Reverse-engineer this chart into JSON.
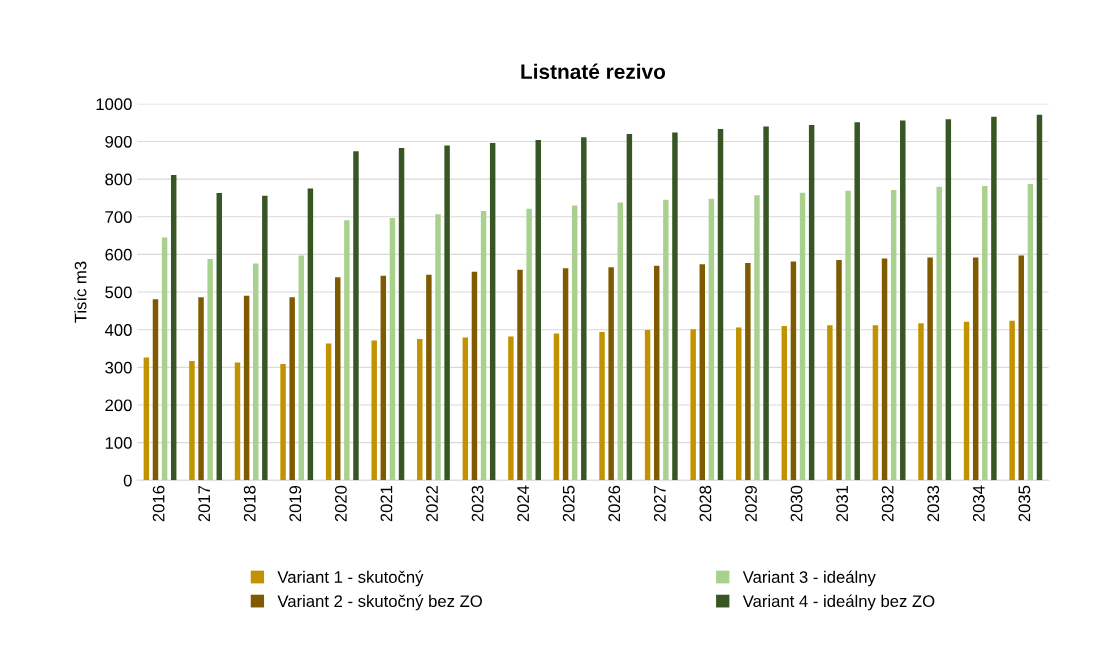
{
  "chart_data": {
    "type": "bar",
    "title": "Listnaté rezivo",
    "ylabel": "Tisíc m3",
    "categories": [
      "2016",
      "2017",
      "2018",
      "2019",
      "2020",
      "2021",
      "2022",
      "2023",
      "2024",
      "2025",
      "2026",
      "2027",
      "2028",
      "2029",
      "2030",
      "2031",
      "2032",
      "2033",
      "2034",
      "2035"
    ],
    "series": [
      {
        "name": "Variant 1 - skutočný",
        "color": "#c39200",
        "values": [
          326,
          317,
          313,
          309,
          363,
          371,
          375,
          379,
          382,
          390,
          394,
          399,
          401,
          406,
          410,
          412,
          412,
          417,
          421,
          424
        ]
      },
      {
        "name": "Variant 2 - skutočný bez ZO",
        "color": "#7f5a00",
        "values": [
          481,
          486,
          490,
          486,
          539,
          543,
          546,
          554,
          559,
          563,
          566,
          570,
          574,
          577,
          581,
          585,
          589,
          592,
          592,
          597
        ]
      },
      {
        "name": "Variant 3 - ideálny",
        "color": "#a9d18e",
        "values": [
          645,
          588,
          576,
          597,
          691,
          697,
          707,
          715,
          721,
          730,
          738,
          745,
          748,
          757,
          764,
          769,
          771,
          780,
          782,
          787
        ]
      },
      {
        "name": "Variant 4 - ideálny bez ZO",
        "color": "#375623",
        "values": [
          811,
          763,
          756,
          775,
          874,
          883,
          889,
          896,
          904,
          911,
          920,
          924,
          933,
          940,
          944,
          951,
          956,
          959,
          966,
          971
        ]
      }
    ],
    "ylim": [
      0,
      1000
    ],
    "yticks": [
      0,
      100,
      200,
      300,
      400,
      500,
      600,
      700,
      800,
      900,
      1000
    ],
    "grid": "y",
    "legend": "bottom"
  }
}
